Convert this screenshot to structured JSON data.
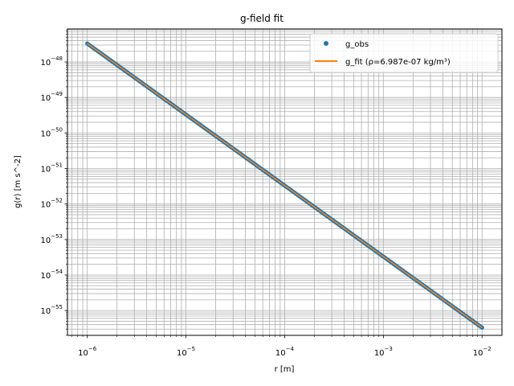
{
  "chart_data": {
    "type": "scatter",
    "title": "g-field fit",
    "xlabel": "r [m]",
    "ylabel": "g(r) [m s^-2]",
    "xscale": "log",
    "yscale": "log",
    "xlim": [
      6.3e-07,
      0.0159
    ],
    "ylim": [
      2e-56,
      8.5e-48
    ],
    "grid": "on (major and minor)",
    "legend_position": "top-right",
    "x_tick_labels": [
      "10^-6",
      "10^-5",
      "10^-4",
      "10^-3",
      "10^-2"
    ],
    "y_tick_labels": [
      "10^-55",
      "10^-54",
      "10^-53",
      "10^-52",
      "10^-51",
      "10^-50",
      "10^-49",
      "10^-48"
    ],
    "series": [
      {
        "name": "g_obs",
        "kind": "markers",
        "color": "#1f77b4",
        "x": [
          1e-06,
          0.01
        ],
        "y": [
          3.3e-48,
          3.3e-56
        ]
      },
      {
        "name": "g_fit (ρ=6.987e-07 kg/m³)",
        "kind": "line",
        "color": "#ff7f0e",
        "x": [
          1e-06,
          0.01
        ],
        "y": [
          3.3e-48,
          3.3e-56
        ]
      }
    ]
  }
}
